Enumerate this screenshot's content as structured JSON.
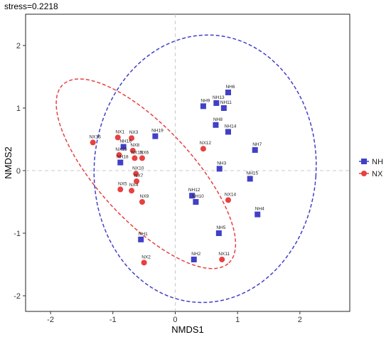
{
  "chart_data": {
    "type": "scatter",
    "title": "stress=0.2218",
    "xlabel": "NMDS1",
    "ylabel": "NMDS2",
    "xlim": [
      -2.4,
      2.8
    ],
    "ylim": [
      -2.25,
      2.5
    ],
    "xticks": [
      -2,
      -1,
      0,
      1,
      2
    ],
    "yticks": [
      -2,
      -1,
      0,
      1,
      2
    ],
    "grid": false,
    "legend_position": "right",
    "series": [
      {
        "name": "NH",
        "marker": "square",
        "color": "#4040c8",
        "points": [
          {
            "label": "NH1",
            "x": -0.55,
            "y": -1.1
          },
          {
            "label": "NH2",
            "x": 0.3,
            "y": -1.42
          },
          {
            "label": "NH3",
            "x": 0.71,
            "y": 0.03
          },
          {
            "label": "NH4",
            "x": 1.32,
            "y": -0.7
          },
          {
            "label": "NH5",
            "x": 0.7,
            "y": -1.0
          },
          {
            "label": "NH6",
            "x": 0.85,
            "y": 1.25
          },
          {
            "label": "NH7",
            "x": 1.28,
            "y": 0.33
          },
          {
            "label": "NH8",
            "x": 0.65,
            "y": 0.73
          },
          {
            "label": "NH9",
            "x": 0.45,
            "y": 1.03
          },
          {
            "label": "NH10",
            "x": 0.33,
            "y": -0.5
          },
          {
            "label": "NH11",
            "x": 0.78,
            "y": 1.0
          },
          {
            "label": "NH12",
            "x": 0.27,
            "y": -0.4
          },
          {
            "label": "NH13",
            "x": 0.66,
            "y": 1.08
          },
          {
            "label": "NH14",
            "x": 0.85,
            "y": 0.62
          },
          {
            "label": "NH15",
            "x": 1.2,
            "y": -0.13
          },
          {
            "label": "NH16",
            "x": -0.83,
            "y": 0.38
          },
          {
            "label": "NH18",
            "x": -0.88,
            "y": 0.13
          },
          {
            "label": "NH19",
            "x": -0.32,
            "y": 0.55
          }
        ]
      },
      {
        "name": "NX",
        "marker": "circle",
        "color": "#e84040",
        "points": [
          {
            "label": "NX1",
            "x": -0.92,
            "y": 0.53
          },
          {
            "label": "NX2",
            "x": -0.5,
            "y": -1.47
          },
          {
            "label": "NX3",
            "x": -0.7,
            "y": 0.52
          },
          {
            "label": "NX4",
            "x": -0.7,
            "y": -0.32
          },
          {
            "label": "NX5",
            "x": -0.88,
            "y": -0.3
          },
          {
            "label": "NX6",
            "x": -0.53,
            "y": 0.2
          },
          {
            "label": "NX7",
            "x": -0.62,
            "y": -0.17
          },
          {
            "label": "NX8",
            "x": -0.68,
            "y": 0.32
          },
          {
            "label": "NX9",
            "x": -0.53,
            "y": -0.5
          },
          {
            "label": "NX10",
            "x": -0.63,
            "y": -0.05
          },
          {
            "label": "NX11",
            "x": 0.75,
            "y": -1.42
          },
          {
            "label": "NX12",
            "x": 0.45,
            "y": 0.35
          },
          {
            "label": "NX13",
            "x": -0.65,
            "y": 0.2
          },
          {
            "label": "NX14",
            "x": 0.85,
            "y": -0.47
          },
          {
            "label": "NX15",
            "x": -0.9,
            "y": 0.25
          },
          {
            "label": "NX16",
            "x": -1.32,
            "y": 0.45
          }
        ]
      }
    ],
    "ellipses": [
      {
        "series": "NH",
        "cx": 0.48,
        "cy": 0.03,
        "rx": 1.78,
        "ry": 2.14,
        "angle_deg": -4
      },
      {
        "series": "NX",
        "cx": -0.47,
        "cy": -0.05,
        "rx": 1.95,
        "ry": 0.75,
        "angle_deg": -47
      }
    ]
  }
}
